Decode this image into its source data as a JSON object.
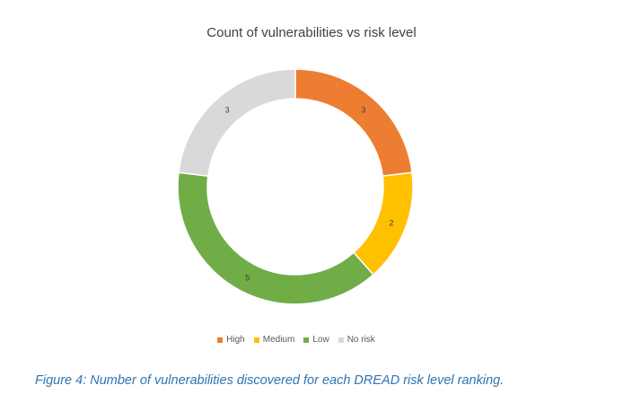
{
  "chart_data": {
    "type": "pie",
    "variant": "doughnut",
    "title": "Count of vulnerabilities vs risk level",
    "categories": [
      "High",
      "Medium",
      "Low",
      "No risk"
    ],
    "values": [
      3,
      2,
      5,
      3
    ],
    "colors": [
      "#ed7d31",
      "#ffc000",
      "#70ad47",
      "#d9d9d9"
    ],
    "data_labels": [
      "3",
      "2",
      "5",
      "3"
    ],
    "legend_position": "bottom"
  },
  "caption": "Figure 4: Number of vulnerabilities discovered for each DREAD risk level ranking."
}
